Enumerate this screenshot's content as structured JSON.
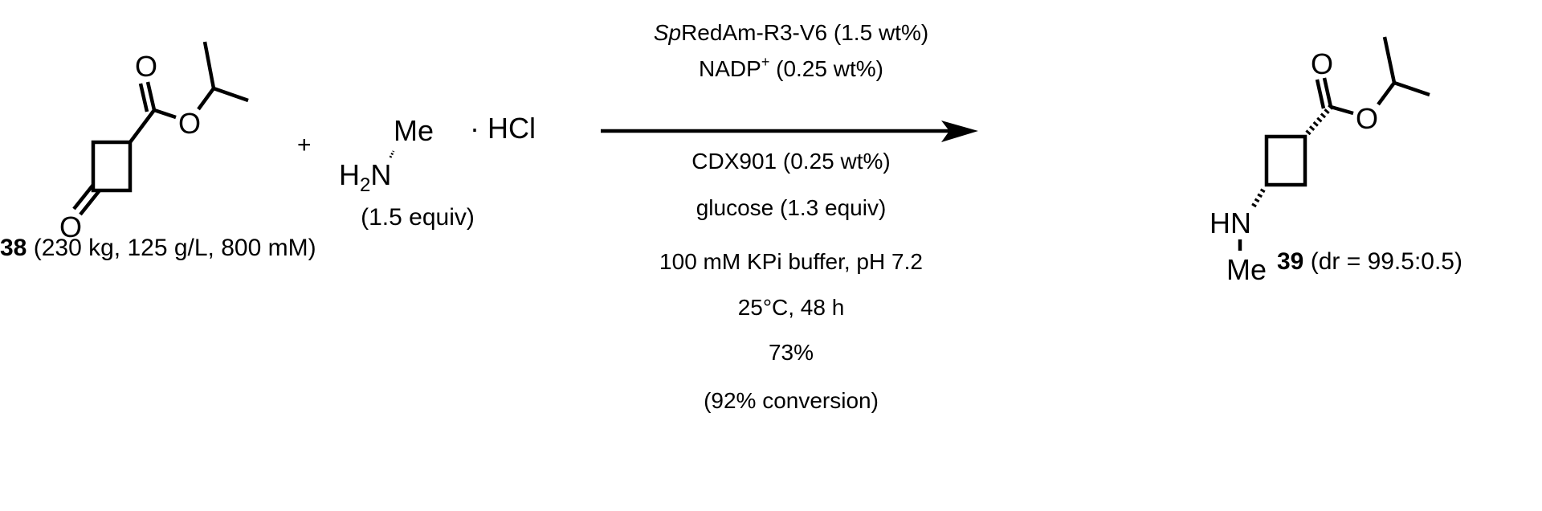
{
  "reactant1": {
    "label_number": "38",
    "label_details": " (230 kg, 125 g/L, 800 mM)",
    "atoms": {
      "ketone_o": "O",
      "carbonyl_o": "O",
      "ester_o": "O"
    }
  },
  "plus": "+",
  "reactant2": {
    "h2n_h": "H",
    "h2n_sub": "2",
    "h2n_n": "N",
    "me": "Me",
    "salt": "· HCl",
    "equiv": "(1.5 equiv)"
  },
  "conditions": {
    "enzyme_italic": "Sp",
    "enzyme_rest": "RedAm-R3-V6 (1.5 wt%)",
    "cofactor": "NADP",
    "cofactor_sup": "+",
    "cofactor_amount": " (0.25 wt%)",
    "below": [
      "CDX901 (0.25 wt%)",
      "glucose (1.3 equiv)",
      "100 mM KPi buffer, pH 7.2",
      "25°C, 48 h",
      "73%",
      "(92% conversion)"
    ]
  },
  "product": {
    "label_number": "39",
    "label_details": " (dr = 99.5:0.5)",
    "atoms": {
      "carbonyl_o": "O",
      "ester_o": "O",
      "hn": "HN",
      "me": "Me"
    }
  }
}
